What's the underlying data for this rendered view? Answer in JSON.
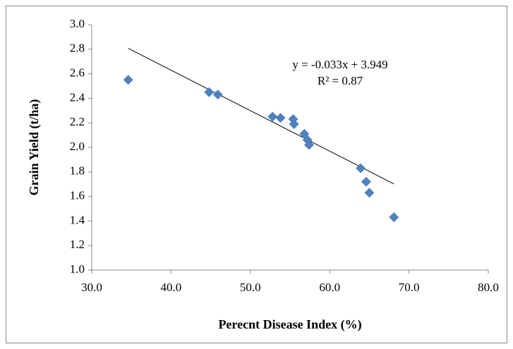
{
  "chart_data": {
    "type": "scatter",
    "x_label": "Perecnt Disease Index (%)",
    "y_label": "Grain Yield (t/ha)",
    "series": [
      {
        "color": "#4f81bd",
        "x": [
          34.6,
          44.8,
          45.9,
          52.8,
          53.8,
          55.4,
          55.5,
          56.8,
          57.2,
          57.4,
          63.9,
          64.6,
          65.0,
          68.1
        ],
        "values": [
          2.55,
          2.45,
          2.43,
          2.25,
          2.24,
          2.23,
          2.19,
          2.11,
          2.06,
          2.02,
          1.83,
          1.72,
          1.63,
          1.43
        ]
      }
    ],
    "trendline": {
      "equation": "y = -0.033x + 3.949",
      "r2_label": "R² = 0.87",
      "slope": -0.033,
      "intercept": 3.949
    },
    "xlim": [
      30,
      80
    ],
    "xticks": [
      {
        "value": 30,
        "label": "30.0"
      },
      {
        "value": 40,
        "label": "40.0"
      },
      {
        "value": 50,
        "label": "50.0"
      },
      {
        "value": 60,
        "label": "60.0"
      },
      {
        "value": 70,
        "label": "70.0"
      },
      {
        "value": 80,
        "label": "80.0"
      }
    ],
    "ylim": [
      1,
      3
    ],
    "yticks": [
      {
        "value": 1,
        "label": "1.0"
      },
      {
        "value": 1.2,
        "label": "1.2"
      },
      {
        "value": 1.4,
        "label": "1.4"
      },
      {
        "value": 1.6,
        "label": "1.6"
      },
      {
        "value": 1.8,
        "label": "1.8"
      },
      {
        "value": 2,
        "label": "2.0"
      },
      {
        "value": 2.2,
        "label": "2.2"
      },
      {
        "value": 2.4,
        "label": "2.4"
      },
      {
        "value": 2.6,
        "label": "2.6"
      },
      {
        "value": 2.8,
        "label": "2.8"
      },
      {
        "value": 3,
        "label": "3.0"
      }
    ],
    "grid": false
  }
}
